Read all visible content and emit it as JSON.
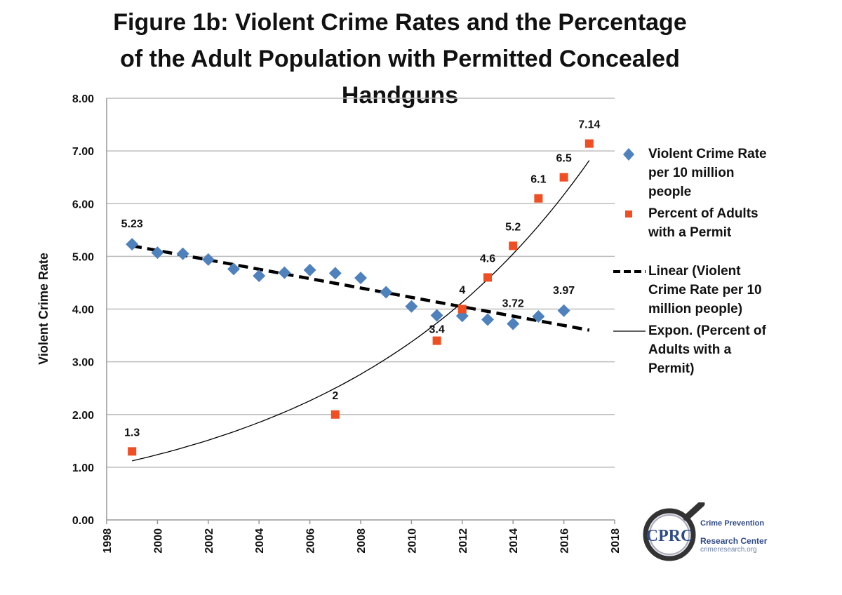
{
  "chart_data": {
    "type": "scatter",
    "title": "Figure 1b: Violent Crime Rates and the Percentage of the Adult Population with Permitted Concealed Handguns",
    "title_lines": [
      "Figure 1b: Violent Crime Rates and the Percentage",
      "of the Adult Population with Permitted Concealed",
      "Handguns"
    ],
    "ylabel": "Violent Crime Rate",
    "xlabel": "",
    "xlim": [
      1998,
      2018
    ],
    "ylim": [
      0,
      8
    ],
    "x_ticks": [
      "1998",
      "2000",
      "2002",
      "2004",
      "2006",
      "2008",
      "2010",
      "2012",
      "2014",
      "2016",
      "2018"
    ],
    "y_ticks": [
      "0.00",
      "1.00",
      "2.00",
      "3.00",
      "4.00",
      "5.00",
      "6.00",
      "7.00",
      "8.00"
    ],
    "grid": "horizontal",
    "legend_position": "right",
    "series": [
      {
        "name": "Violent Crime Rate per 10 million people",
        "marker": "diamond",
        "color": "#4f81bd",
        "x": [
          1999,
          2000,
          2001,
          2002,
          2003,
          2004,
          2005,
          2006,
          2007,
          2008,
          2009,
          2010,
          2011,
          2012,
          2013,
          2014,
          2015,
          2016
        ],
        "y": [
          5.23,
          5.07,
          5.05,
          4.94,
          4.76,
          4.63,
          4.69,
          4.74,
          4.68,
          4.59,
          4.32,
          4.05,
          3.88,
          3.87,
          3.8,
          3.72,
          3.86,
          3.97
        ],
        "labels": {
          "1999": "5.23",
          "2014": "3.72",
          "2016": "3.97"
        }
      },
      {
        "name": "Percent of Adults with a Permit",
        "marker": "square",
        "color": "#f04e23",
        "x": [
          1999,
          2007,
          2011,
          2012,
          2013,
          2014,
          2015,
          2016,
          2017
        ],
        "y": [
          1.3,
          2,
          3.4,
          4,
          4.6,
          5.2,
          6.1,
          6.5,
          7.14
        ],
        "labels": {
          "1999": "1.3",
          "2007": "2",
          "2011": "3.4",
          "2012": "4",
          "2013": "4.6",
          "2014": "5.2",
          "2015": "6.1",
          "2016": "6.5",
          "2017": "7.14"
        }
      }
    ],
    "trendlines": [
      {
        "name": "Linear (Violent Crime Rate per 10 million people)",
        "kind": "linear",
        "style": "dashed",
        "color": "#000000",
        "x_range": [
          1999,
          2017
        ],
        "y_start": 5.2,
        "y_end": 3.6
      },
      {
        "name": "Expon. (Percent of Adults with a Permit)",
        "kind": "exponential",
        "style": "solid",
        "color": "#000000",
        "x_range": [
          1999,
          2017
        ],
        "y_start": 1.12,
        "y_end": 6.82
      }
    ]
  },
  "legend": {
    "items": [
      {
        "lines": [
          "Violent Crime Rate",
          "per 10 million",
          "people"
        ]
      },
      {
        "lines": [
          "Percent of Adults",
          "with a Permit"
        ]
      },
      {
        "lines": [
          "Linear (Violent",
          "Crime Rate per 10",
          "million people)"
        ]
      },
      {
        "lines": [
          "Expon. (Percent of",
          "Adults with a",
          "Permit)"
        ]
      }
    ]
  },
  "logo": {
    "initials": "CPRC",
    "line1": "Crime Prevention",
    "line2": "Research Center",
    "url": "crimeresearch.org",
    "color": "#2e4a86"
  }
}
